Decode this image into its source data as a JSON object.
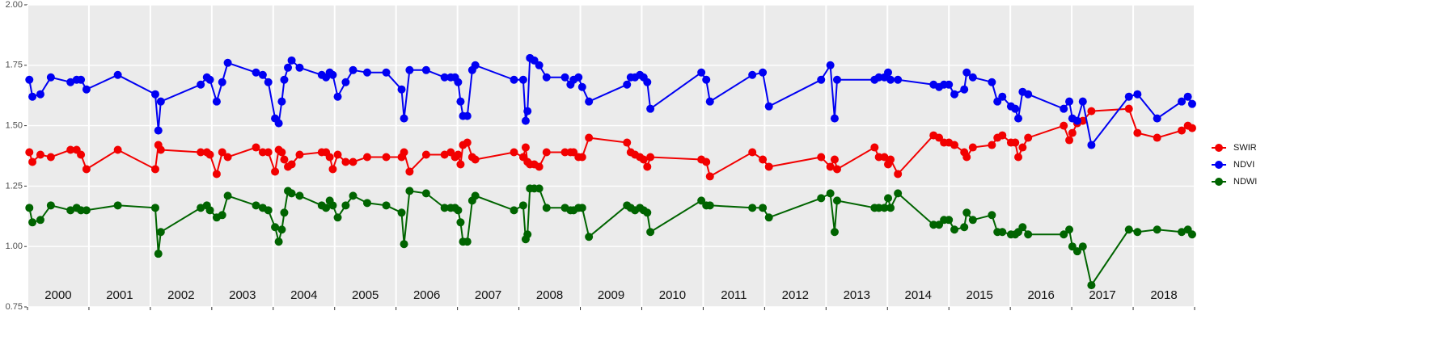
{
  "chart_data": {
    "type": "line",
    "x": [
      2000.03,
      2000.08,
      2000.21,
      2000.38,
      2000.7,
      2000.8,
      2000.87,
      2000.96,
      2001.47,
      2002.08,
      2002.13,
      2002.17,
      2002.82,
      2002.92,
      2002.97,
      2003.08,
      2003.17,
      2003.26,
      2003.72,
      2003.83,
      2003.92,
      2004.03,
      2004.09,
      2004.14,
      2004.18,
      2004.24,
      2004.3,
      2004.43,
      2004.79,
      2004.86,
      2004.92,
      2004.97,
      2005.05,
      2005.18,
      2005.3,
      2005.53,
      2005.84,
      2006.09,
      2006.13,
      2006.22,
      2006.49,
      2006.79,
      2006.89,
      2006.96,
      2007.01,
      2007.05,
      2007.09,
      2007.16,
      2007.24,
      2007.29,
      2007.92,
      2008.07,
      2008.11,
      2008.14,
      2008.18,
      2008.25,
      2008.33,
      2008.45,
      2008.75,
      2008.84,
      2008.89,
      2008.97,
      2009.03,
      2009.14,
      2009.76,
      2009.82,
      2009.89,
      2009.97,
      2010.03,
      2010.09,
      2010.14,
      2010.97,
      2011.05,
      2011.11,
      2011.8,
      2011.97,
      2012.07,
      2012.92,
      2013.07,
      2013.14,
      2013.18,
      2013.79,
      2013.86,
      2013.95,
      2014.01,
      2014.05,
      2014.17,
      2014.75,
      2014.84,
      2014.92,
      2015.0,
      2015.09,
      2015.25,
      2015.29,
      2015.39,
      2015.7,
      2015.79,
      2015.87,
      2016.01,
      2016.08,
      2016.13,
      2016.2,
      2016.29,
      2016.87,
      2016.96,
      2017.01,
      2017.09,
      2017.18,
      2017.32,
      2017.93,
      2018.07,
      2018.39,
      2018.79,
      2018.89,
      2018.96
    ],
    "series": [
      {
        "name": "SWIR",
        "color": "#f20000",
        "values": [
          1.39,
          1.35,
          1.38,
          1.37,
          1.4,
          1.4,
          1.38,
          1.32,
          1.4,
          1.32,
          1.42,
          1.4,
          1.39,
          1.39,
          1.38,
          1.3,
          1.39,
          1.37,
          1.41,
          1.39,
          1.39,
          1.31,
          1.4,
          1.39,
          1.36,
          1.33,
          1.34,
          1.38,
          1.39,
          1.39,
          1.37,
          1.32,
          1.38,
          1.35,
          1.35,
          1.37,
          1.37,
          1.37,
          1.39,
          1.31,
          1.38,
          1.38,
          1.39,
          1.37,
          1.38,
          1.34,
          1.42,
          1.43,
          1.37,
          1.36,
          1.39,
          1.37,
          1.41,
          1.35,
          1.34,
          1.34,
          1.33,
          1.39,
          1.39,
          1.39,
          1.39,
          1.37,
          1.37,
          1.45,
          1.43,
          1.39,
          1.38,
          1.37,
          1.36,
          1.33,
          1.37,
          1.36,
          1.35,
          1.29,
          1.39,
          1.36,
          1.33,
          1.37,
          1.33,
          1.36,
          1.32,
          1.41,
          1.37,
          1.37,
          1.34,
          1.36,
          1.3,
          1.46,
          1.45,
          1.43,
          1.43,
          1.42,
          1.39,
          1.37,
          1.41,
          1.42,
          1.45,
          1.46,
          1.43,
          1.43,
          1.37,
          1.41,
          1.45,
          1.5,
          1.44,
          1.47,
          1.51,
          1.52,
          1.56,
          1.57,
          1.47,
          1.45,
          1.48,
          1.5,
          1.49
        ]
      },
      {
        "name": "NDVI",
        "color": "#0000f2",
        "values": [
          1.69,
          1.62,
          1.63,
          1.7,
          1.68,
          1.69,
          1.69,
          1.65,
          1.71,
          1.63,
          1.48,
          1.6,
          1.67,
          1.7,
          1.69,
          1.6,
          1.68,
          1.76,
          1.72,
          1.71,
          1.68,
          1.53,
          1.51,
          1.6,
          1.69,
          1.74,
          1.77,
          1.74,
          1.71,
          1.7,
          1.72,
          1.71,
          1.62,
          1.68,
          1.73,
          1.72,
          1.72,
          1.65,
          1.53,
          1.73,
          1.73,
          1.7,
          1.7,
          1.7,
          1.68,
          1.6,
          1.54,
          1.54,
          1.73,
          1.75,
          1.69,
          1.69,
          1.52,
          1.56,
          1.78,
          1.77,
          1.75,
          1.7,
          1.7,
          1.67,
          1.69,
          1.7,
          1.66,
          1.6,
          1.67,
          1.7,
          1.7,
          1.71,
          1.7,
          1.68,
          1.57,
          1.72,
          1.69,
          1.6,
          1.71,
          1.72,
          1.58,
          1.69,
          1.75,
          1.53,
          1.69,
          1.69,
          1.7,
          1.7,
          1.72,
          1.69,
          1.69,
          1.67,
          1.66,
          1.67,
          1.67,
          1.63,
          1.65,
          1.72,
          1.7,
          1.68,
          1.6,
          1.62,
          1.58,
          1.57,
          1.53,
          1.64,
          1.63,
          1.57,
          1.6,
          1.53,
          1.52,
          1.6,
          1.42,
          1.62,
          1.63,
          1.53,
          1.6,
          1.62,
          1.59
        ]
      },
      {
        "name": "NDWI",
        "color": "#006400",
        "values": [
          1.16,
          1.1,
          1.11,
          1.17,
          1.15,
          1.16,
          1.15,
          1.15,
          1.17,
          1.16,
          0.97,
          1.06,
          1.16,
          1.17,
          1.15,
          1.12,
          1.13,
          1.21,
          1.17,
          1.16,
          1.15,
          1.08,
          1.02,
          1.07,
          1.14,
          1.23,
          1.22,
          1.21,
          1.17,
          1.16,
          1.19,
          1.17,
          1.12,
          1.17,
          1.21,
          1.18,
          1.17,
          1.14,
          1.01,
          1.23,
          1.22,
          1.16,
          1.16,
          1.16,
          1.15,
          1.1,
          1.02,
          1.02,
          1.19,
          1.21,
          1.15,
          1.17,
          1.03,
          1.05,
          1.24,
          1.24,
          1.24,
          1.16,
          1.16,
          1.15,
          1.15,
          1.16,
          1.16,
          1.04,
          1.17,
          1.16,
          1.15,
          1.16,
          1.15,
          1.14,
          1.06,
          1.19,
          1.17,
          1.17,
          1.16,
          1.16,
          1.12,
          1.2,
          1.22,
          1.06,
          1.19,
          1.16,
          1.16,
          1.16,
          1.2,
          1.16,
          1.22,
          1.09,
          1.09,
          1.11,
          1.11,
          1.07,
          1.08,
          1.14,
          1.11,
          1.13,
          1.06,
          1.06,
          1.05,
          1.05,
          1.06,
          1.08,
          1.05,
          1.05,
          1.07,
          1.0,
          0.98,
          1.0,
          0.84,
          1.07,
          1.06,
          1.07,
          1.06,
          1.07,
          1.05
        ]
      }
    ],
    "xlim": [
      2000,
      2019
    ],
    "xticks": [
      2000,
      2001,
      2002,
      2003,
      2004,
      2005,
      2006,
      2007,
      2008,
      2009,
      2010,
      2011,
      2012,
      2013,
      2014,
      2015,
      2016,
      2017,
      2018,
      2019
    ],
    "year_labels": [
      "2000",
      "2001",
      "2002",
      "2003",
      "2004",
      "2005",
      "2006",
      "2007",
      "2008",
      "2009",
      "2010",
      "2011",
      "2012",
      "2013",
      "2014",
      "2015",
      "2016",
      "2017",
      "2018"
    ],
    "ylim": [
      0.75,
      2.0
    ],
    "yticks": [
      {
        "value": 0.75,
        "label": "0.75"
      },
      {
        "value": 1.0,
        "label": "1.00"
      },
      {
        "value": 1.25,
        "label": "1.25"
      },
      {
        "value": 1.5,
        "label": "1.50"
      },
      {
        "value": 1.75,
        "label": "1.75"
      },
      {
        "value": 2.0,
        "label": "2.00"
      }
    ],
    "grid": true,
    "legend": "right"
  }
}
